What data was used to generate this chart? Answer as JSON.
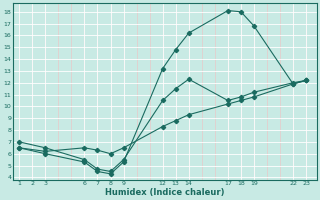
{
  "xlabel": "Humidex (Indice chaleur)",
  "bg_color": "#c8eae4",
  "grid_color": "#ffffff",
  "pink_grid_color": "#e8c8c8",
  "line_color": "#1a6b60",
  "line1_x": [
    1,
    3,
    6,
    7,
    8,
    9,
    12,
    13,
    14,
    17,
    18,
    19,
    22,
    23
  ],
  "line1_y": [
    6.5,
    6.0,
    5.3,
    4.5,
    4.3,
    5.3,
    13.2,
    14.8,
    16.2,
    18.1,
    18.0,
    16.8,
    11.9,
    12.2
  ],
  "line2_x": [
    1,
    3,
    6,
    7,
    8,
    9,
    12,
    13,
    14,
    17,
    18,
    19,
    22,
    23
  ],
  "line2_y": [
    6.5,
    6.2,
    6.5,
    6.3,
    6.0,
    6.5,
    8.3,
    8.8,
    9.3,
    10.2,
    10.5,
    10.8,
    11.9,
    12.2
  ],
  "line3_x": [
    1,
    3,
    6,
    7,
    8,
    9,
    12,
    13,
    14,
    17,
    18,
    19,
    22,
    23
  ],
  "line3_y": [
    7.0,
    6.5,
    5.5,
    4.7,
    4.5,
    5.5,
    10.5,
    11.5,
    12.3,
    10.5,
    10.8,
    11.2,
    12.0,
    12.2
  ],
  "all_xticks": [
    1,
    2,
    3,
    4,
    5,
    6,
    7,
    8,
    9,
    10,
    11,
    12,
    13,
    14,
    15,
    16,
    17,
    18,
    19,
    20,
    21,
    22,
    23
  ],
  "labeled_xticks": [
    1,
    2,
    3,
    6,
    7,
    8,
    9,
    12,
    13,
    14,
    17,
    18,
    19,
    22,
    23
  ],
  "yticks": [
    4,
    5,
    6,
    7,
    8,
    9,
    10,
    11,
    12,
    13,
    14,
    15,
    16,
    17,
    18
  ],
  "xlim": [
    0.5,
    23.8
  ],
  "ylim": [
    3.8,
    18.7
  ]
}
